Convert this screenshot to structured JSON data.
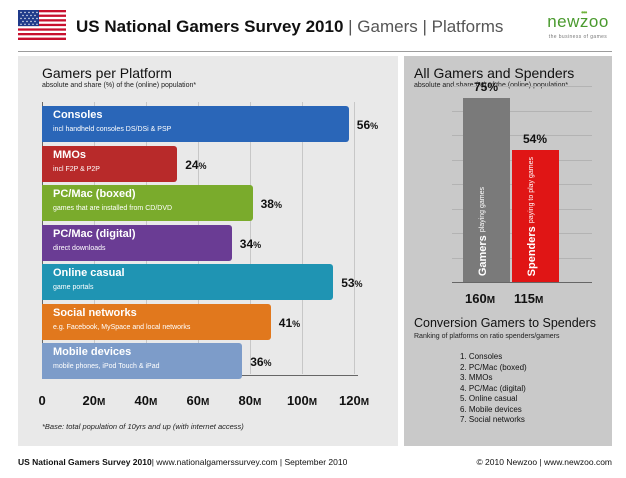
{
  "header": {
    "title_bold": "US National Gamers Survey 2010",
    "title_rest": " | Gamers | Platforms",
    "logo_text": "newzoo",
    "logo_tagline": "the business of games"
  },
  "colors": {
    "consoles": "#2a66b8",
    "mmos": "#b82a2a",
    "pc_boxed": "#7aab2c",
    "pc_digital": "#6a3c94",
    "online_casual": "#1f94b3",
    "social_networks": "#e1781d",
    "mobile_devices": "#7d9cc9",
    "gamers_bar": "#7a7a7a",
    "spenders_bar": "#e01515",
    "logo_green": "#4a9a2e"
  },
  "chart_data": [
    {
      "type": "bar",
      "orientation": "horizontal",
      "title": "Gamers per Platform",
      "subtitle": "absolute and share (%) of the (online) population*",
      "categories": [
        "Consoles",
        "MMOs",
        "PC/Mac (boxed)",
        "PC/Mac (digital)",
        "Online casual",
        "Social networks",
        "Mobile devices"
      ],
      "category_notes": [
        "incl handheld consoles DS/DSi & PSP",
        "incl F2P & P2P",
        "games that are installed from CD/DVD",
        "direct downloads",
        "game portals",
        "e.g. Facebook, MySpace and local networks",
        "mobile phones, iPod Touch & iPad"
      ],
      "values_millions": [
        118,
        52,
        81,
        73,
        112,
        88,
        77
      ],
      "labels_pct": [
        "56",
        "24",
        "38",
        "34",
        "53",
        "41",
        "36"
      ],
      "pct_suffix": "%",
      "xlim": [
        0,
        120
      ],
      "ticks": [
        "0",
        "20",
        "40",
        "60",
        "80",
        "100",
        "120"
      ],
      "tick_suffix": "M",
      "unit": "millions",
      "footnote": "*Base: total population of 10yrs and up (with internet access)"
    },
    {
      "type": "bar",
      "orientation": "vertical",
      "title": "All Gamers and Spenders",
      "subtitle": "absolute and share (%) of the (online) population*",
      "categories": [
        "Gamers",
        "Spenders"
      ],
      "category_notes": [
        "playing games",
        "paying to play games"
      ],
      "values_pct": [
        75,
        54
      ],
      "labels_pct": [
        "75%",
        "54%"
      ],
      "counts_millions": [
        "160",
        "115"
      ],
      "count_suffix": "M",
      "ylim": [
        0,
        80
      ]
    }
  ],
  "conversion": {
    "title": "Conversion Gamers to Spenders",
    "subtitle": "Ranking of platforms on ratio spenders/gamers",
    "items": [
      "1.  Consoles",
      "2.  PC/Mac (boxed)",
      "3.  MMOs",
      "4.  PC/Mac (digital)",
      "5.  Online casual",
      "6.  Mobile devices",
      "7.  Social networks"
    ]
  },
  "footer": {
    "left_bold": "US National Gamers Survey 2010",
    "left_rest": "| www.nationalgamerssurvey.com  | September 2010",
    "right": "© 2010 Newzoo | www.newzoo.com"
  }
}
